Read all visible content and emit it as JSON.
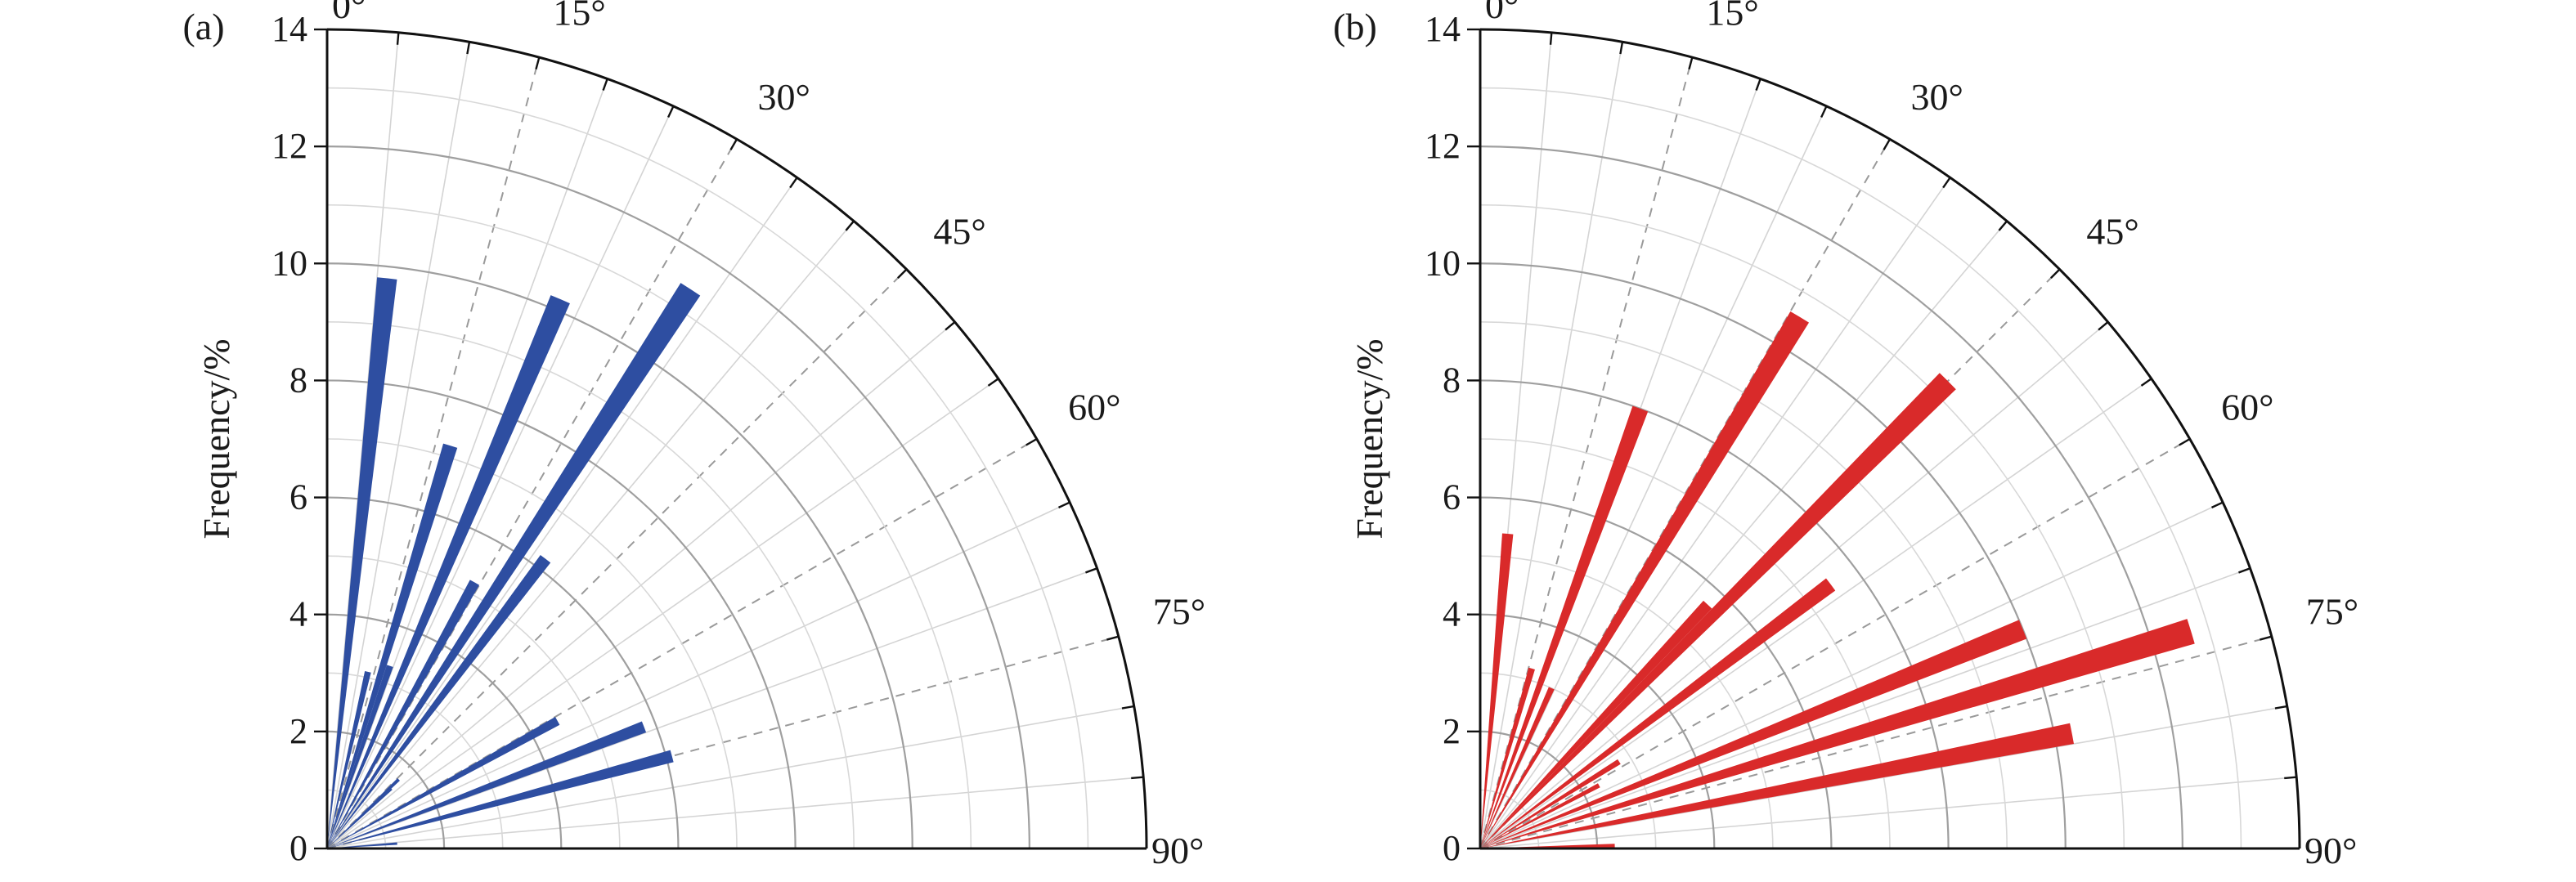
{
  "chart_data": [
    {
      "type": "polar-bar",
      "panel_label": "(a)",
      "ylabel": "Frequency/%",
      "rlim": [
        0,
        14
      ],
      "r_ticks": [
        "0",
        "2",
        "4",
        "6",
        "8",
        "10",
        "12",
        "14"
      ],
      "theta_range_deg": [
        0,
        90
      ],
      "angle_labels": [
        "0°",
        "15°",
        "30°",
        "45°",
        "60°",
        "75°",
        "90°"
      ],
      "bar_color": "#2e4ea1",
      "bin_width_deg": 2,
      "bars": [
        {
          "angle": 6,
          "value": 9.8
        },
        {
          "angle": 13,
          "value": 3.1
        },
        {
          "angle": 17,
          "value": 7.2
        },
        {
          "angle": 19,
          "value": 3.3
        },
        {
          "angle": 23,
          "value": 10.2
        },
        {
          "angle": 29,
          "value": 5.2
        },
        {
          "angle": 33,
          "value": 11.4
        },
        {
          "angle": 37,
          "value": 6.2
        },
        {
          "angle": 46,
          "value": 1.7
        },
        {
          "angle": 47,
          "value": 1.5
        },
        {
          "angle": 61,
          "value": 4.5
        },
        {
          "angle": 69,
          "value": 5.8
        },
        {
          "angle": 75,
          "value": 6.1
        },
        {
          "angle": 86,
          "value": 1.2
        }
      ]
    },
    {
      "type": "polar-bar",
      "panel_label": "(b)",
      "ylabel": "Frequency/%",
      "rlim": [
        0,
        14
      ],
      "r_ticks": [
        "0",
        "2",
        "4",
        "6",
        "8",
        "10",
        "12",
        "14"
      ],
      "theta_range_deg": [
        0,
        90
      ],
      "angle_labels": [
        "0°",
        "15°",
        "30°",
        "45°",
        "60°",
        "75°",
        "90°"
      ],
      "bar_color": "#d92a2a",
      "bin_width_deg": 2,
      "bars": [
        {
          "angle": 5,
          "value": 5.4
        },
        {
          "angle": 16,
          "value": 3.2
        },
        {
          "angle": 20,
          "value": 8.0
        },
        {
          "angle": 24,
          "value": 3.0
        },
        {
          "angle": 31,
          "value": 10.6
        },
        {
          "angle": 43,
          "value": 5.7
        },
        {
          "angle": 45,
          "value": 11.3
        },
        {
          "angle": 53,
          "value": 7.5
        },
        {
          "angle": 58,
          "value": 2.8
        },
        {
          "angle": 62,
          "value": 2.3
        },
        {
          "angle": 68,
          "value": 10.0
        },
        {
          "angle": 73,
          "value": 12.7
        },
        {
          "angle": 79,
          "value": 10.3
        },
        {
          "angle": 89,
          "value": 2.3
        }
      ]
    }
  ]
}
